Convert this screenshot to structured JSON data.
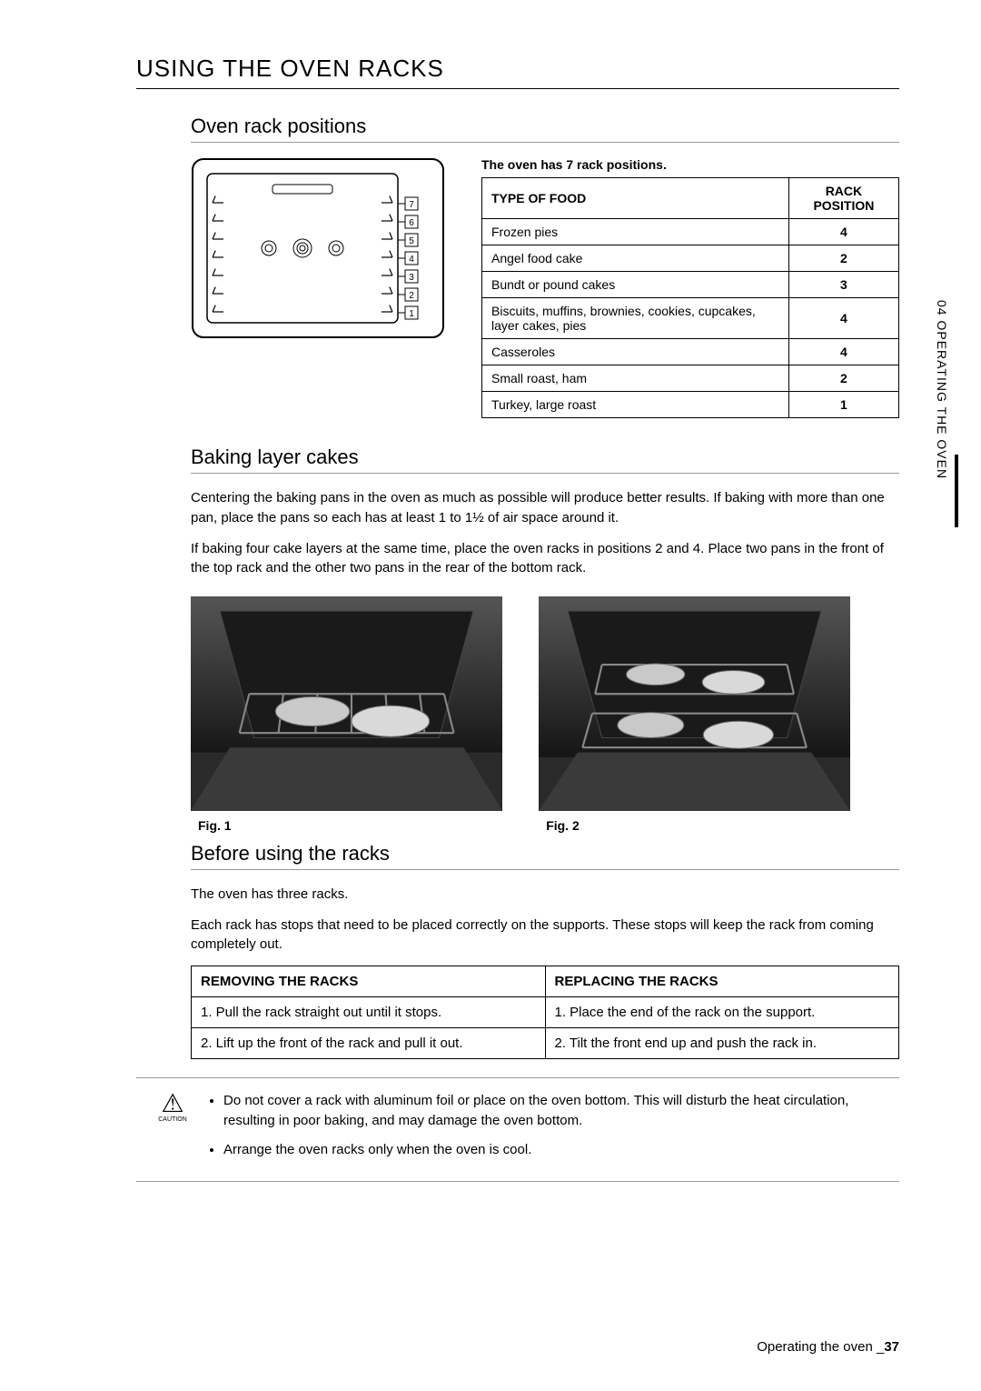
{
  "sideTab": "04  OPERATING THE OVEN",
  "sectionTitle": "USING THE OVEN RACKS",
  "s1": {
    "heading": "Oven rack positions",
    "diagramLabels": [
      "7",
      "6",
      "5",
      "4",
      "3",
      "2",
      "1"
    ],
    "note": "The oven has 7 rack positions.",
    "table": {
      "h1": "TYPE OF FOOD",
      "h2": "RACK POSITION",
      "rows": [
        {
          "t": "Frozen pies",
          "p": "4"
        },
        {
          "t": "Angel food cake",
          "p": "2"
        },
        {
          "t": "Bundt or pound cakes",
          "p": "3"
        },
        {
          "t": "Biscuits, muffins, brownies, cookies, cupcakes, layer cakes, pies",
          "p": "4"
        },
        {
          "t": "Casseroles",
          "p": "4"
        },
        {
          "t": "Small roast, ham",
          "p": "2"
        },
        {
          "t": "Turkey, large roast",
          "p": "1"
        }
      ]
    }
  },
  "s2": {
    "heading": "Baking layer cakes",
    "p1": "Centering the baking pans in the oven as much as possible will produce better results. If baking with more than one pan, place the pans so each has at least 1 to 1½ of air space around it.",
    "p2": "If baking four cake layers at the same time, place the oven racks in positions 2 and 4. Place two pans in the front of the top rack and the other two pans in the rear of the bottom rack.",
    "fig1": "Fig. 1",
    "fig2": "Fig. 2"
  },
  "s3": {
    "heading": "Before using the racks",
    "p1": "The oven has three racks.",
    "p2": "Each rack has stops that need to be placed correctly on the supports. These stops will keep the rack from coming completely out.",
    "table": {
      "h1": "REMOVING THE RACKS",
      "h2": "REPLACING THE RACKS",
      "r1a": "1.  Pull the rack straight out until it stops.",
      "r1b": "1.  Place the end of the rack on the support.",
      "r2a": "2.  Lift up the front of the rack and pull it out.",
      "r2b": "2.  Tilt the front end up and push the rack in."
    }
  },
  "caution": {
    "label": "CAUTION",
    "li1": "Do not cover a rack with aluminum foil or place on the oven bottom. This will disturb the heat circulation, resulting in poor baking, and may damage the oven bottom.",
    "li2": "Arrange the oven racks only when the oven is cool."
  },
  "footer": {
    "text": "Operating the oven _",
    "page": "37"
  }
}
